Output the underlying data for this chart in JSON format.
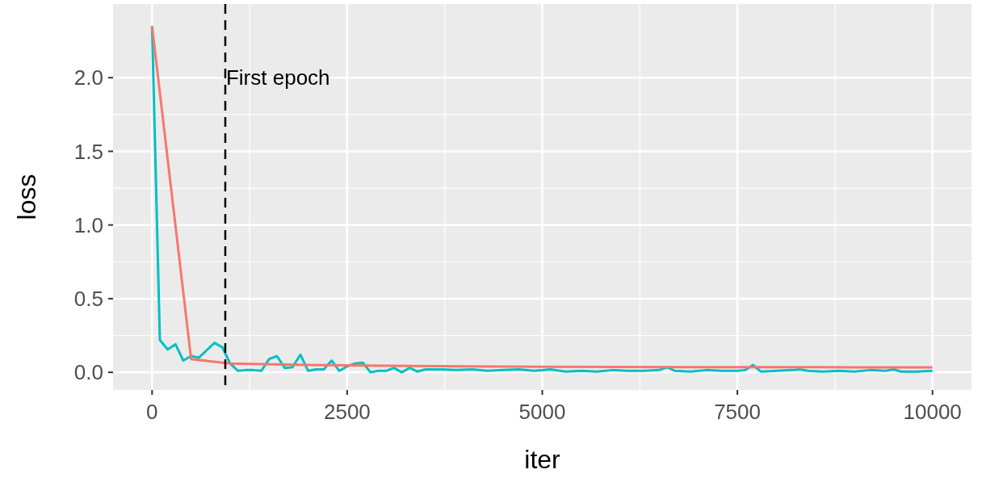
{
  "chart_data": {
    "type": "line",
    "xlabel": "iter",
    "ylabel": "loss",
    "xlim": [
      -500,
      10500
    ],
    "ylim": [
      -0.12,
      2.5
    ],
    "xticks": [
      0,
      2500,
      5000,
      7500,
      10000
    ],
    "yticks": [
      {
        "value": 0,
        "label": "0.0"
      },
      {
        "value": 0.5,
        "label": "0.5"
      },
      {
        "value": 1,
        "label": "1.0"
      },
      {
        "value": 1.5,
        "label": "1.5"
      },
      {
        "value": 2,
        "label": "2.0"
      }
    ],
    "grid": true,
    "ref_lines": [
      {
        "axis": "x",
        "value": 938,
        "label": "First epoch",
        "color": "#000000",
        "line_style": "dashed"
      }
    ],
    "series": [
      {
        "color": "#00bfc4",
        "x": [
          0,
          100,
          200,
          300,
          400,
          500,
          600,
          700,
          800,
          900,
          1000,
          1100,
          1200,
          1300,
          1400,
          1500,
          1600,
          1700,
          1800,
          1900,
          2000,
          2100,
          2200,
          2300,
          2400,
          2500,
          2600,
          2700,
          2800,
          2900,
          3000,
          3100,
          3200,
          3300,
          3400,
          3500,
          3700,
          3900,
          4100,
          4300,
          4500,
          4700,
          4900,
          5100,
          5300,
          5500,
          5700,
          5900,
          6100,
          6300,
          6500,
          6600,
          6700,
          6900,
          7100,
          7300,
          7500,
          7600,
          7700,
          7800,
          8000,
          8200,
          8300,
          8400,
          8600,
          8800,
          9000,
          9200,
          9400,
          9500,
          9600,
          9800,
          10000
        ],
        "values": [
          2.35,
          0.22,
          0.155,
          0.19,
          0.08,
          0.11,
          0.1,
          0.15,
          0.2,
          0.17,
          0.06,
          0.01,
          0.015,
          0.015,
          0.01,
          0.09,
          0.11,
          0.03,
          0.035,
          0.12,
          0.01,
          0.02,
          0.02,
          0.08,
          0.01,
          0.04,
          0.06,
          0.065,
          0.0,
          0.01,
          0.01,
          0.03,
          0.0,
          0.03,
          0.005,
          0.02,
          0.02,
          0.015,
          0.02,
          0.01,
          0.015,
          0.02,
          0.01,
          0.02,
          0.005,
          0.01,
          0.005,
          0.015,
          0.01,
          0.01,
          0.015,
          0.035,
          0.01,
          0.005,
          0.015,
          0.01,
          0.01,
          0.015,
          0.05,
          0.005,
          0.01,
          0.015,
          0.02,
          0.01,
          0.005,
          0.01,
          0.005,
          0.015,
          0.01,
          0.02,
          0.005,
          0.005,
          0.01
        ]
      },
      {
        "color": "#f8766d",
        "x": [
          0,
          500,
          1000,
          2000,
          3000,
          4000,
          5000,
          6000,
          7000,
          8000,
          9000,
          10000
        ],
        "values": [
          2.35,
          0.09,
          0.06,
          0.05,
          0.045,
          0.04,
          0.038,
          0.036,
          0.035,
          0.035,
          0.034,
          0.033
        ]
      }
    ]
  }
}
